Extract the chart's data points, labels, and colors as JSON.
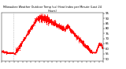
{
  "title": "Milwaukee Weather Outdoor Temp (vs) Heat Index per Minute (Last 24 Hours)",
  "line_color": "#ff0000",
  "background_color": "#ffffff",
  "ylim": [
    48,
    96
  ],
  "yticks": [
    50,
    55,
    60,
    65,
    70,
    75,
    80,
    85,
    90,
    95
  ],
  "num_points": 1440,
  "vline_x": 175,
  "vline_color": "#999999",
  "figwidth": 1.6,
  "figheight": 0.87,
  "dpi": 100
}
